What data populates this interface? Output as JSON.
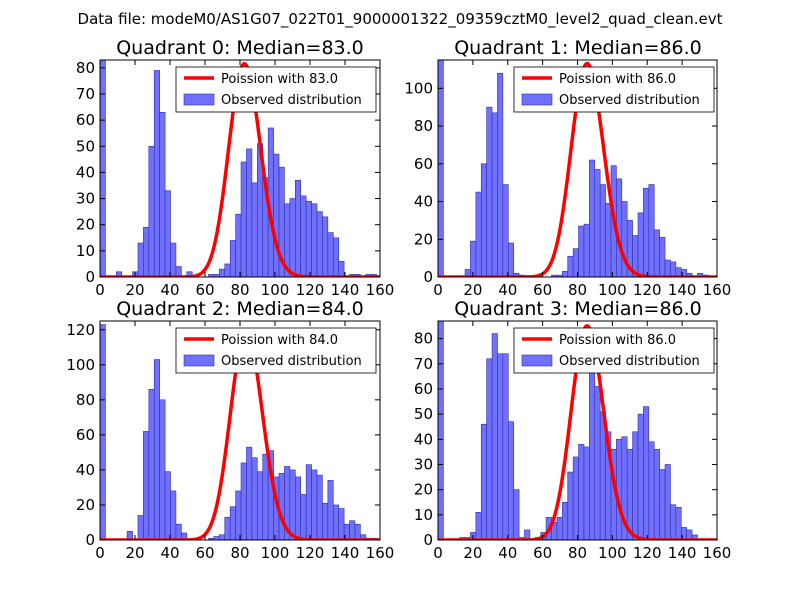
{
  "figure": {
    "suptitle": "Data file: modeM0/AS1G07_022T01_9000001322_09359cztM0_level2_quad_clean.evt",
    "colors": {
      "bars": "#7070ff",
      "bar_edge": "#3030a0",
      "poisson": "#ff0000"
    }
  },
  "chart_data": [
    {
      "type": "bar",
      "title": "Quadrant 0: Median=83.0",
      "xlabel": "",
      "ylabel": "",
      "xlim": [
        0,
        160
      ],
      "ylim": [
        0,
        83
      ],
      "xticks": [
        0,
        20,
        40,
        60,
        80,
        100,
        120,
        140,
        160
      ],
      "yticks": [
        0,
        10,
        20,
        30,
        40,
        50,
        60,
        70,
        80
      ],
      "bin_width": 3.1,
      "bins": [
        [
          0,
          83
        ],
        [
          9.3,
          2
        ],
        [
          18.6,
          2
        ],
        [
          21.7,
          13
        ],
        [
          24.8,
          19
        ],
        [
          27.9,
          50
        ],
        [
          31,
          79
        ],
        [
          34.1,
          63
        ],
        [
          37.2,
          33
        ],
        [
          40.3,
          13
        ],
        [
          43.4,
          4
        ],
        [
          49.6,
          2
        ],
        [
          62,
          1
        ],
        [
          65.1,
          1
        ],
        [
          68.2,
          3
        ],
        [
          71.3,
          5
        ],
        [
          74.4,
          14
        ],
        [
          77.5,
          24
        ],
        [
          80.6,
          44
        ],
        [
          83.7,
          49
        ],
        [
          86.8,
          36
        ],
        [
          89.9,
          51
        ],
        [
          93,
          38
        ],
        [
          96.1,
          57
        ],
        [
          99.2,
          47
        ],
        [
          102.3,
          42
        ],
        [
          105.4,
          28
        ],
        [
          108.5,
          30
        ],
        [
          111.6,
          37
        ],
        [
          114.7,
          31
        ],
        [
          117.8,
          29
        ],
        [
          120.9,
          28
        ],
        [
          124,
          25
        ],
        [
          127.1,
          23
        ],
        [
          130.2,
          17
        ],
        [
          133.3,
          15
        ],
        [
          136.4,
          6
        ],
        [
          142.6,
          1
        ],
        [
          145.7,
          1
        ],
        [
          151.9,
          1
        ],
        [
          155,
          1
        ]
      ],
      "poisson": {
        "mean": 83.0,
        "scale": 81.5,
        "label": "Poission with 83.0"
      },
      "legend": [
        "Poission with 83.0",
        "Observed distribution"
      ],
      "legend_loc": "top-right"
    },
    {
      "type": "bar",
      "title": "Quadrant 1: Median=86.0",
      "xlabel": "",
      "ylabel": "",
      "xlim": [
        0,
        160
      ],
      "ylim": [
        0,
        115
      ],
      "xticks": [
        0,
        20,
        40,
        60,
        80,
        100,
        120,
        140,
        160
      ],
      "yticks": [
        0,
        20,
        40,
        60,
        80,
        100
      ],
      "bin_width": 3.1,
      "bins": [
        [
          0,
          115
        ],
        [
          15.5,
          4
        ],
        [
          18.6,
          19
        ],
        [
          21.7,
          45
        ],
        [
          24.8,
          60
        ],
        [
          27.9,
          90
        ],
        [
          31,
          87
        ],
        [
          34.1,
          108
        ],
        [
          37.2,
          49
        ],
        [
          40.3,
          18
        ],
        [
          43.4,
          2
        ],
        [
          46.5,
          1
        ],
        [
          55.8,
          1
        ],
        [
          65.1,
          1
        ],
        [
          68.2,
          1
        ],
        [
          71.3,
          3
        ],
        [
          74.4,
          11
        ],
        [
          77.5,
          15
        ],
        [
          80.6,
          27
        ],
        [
          83.7,
          28
        ],
        [
          86.8,
          62
        ],
        [
          89.9,
          57
        ],
        [
          93,
          49
        ],
        [
          96.1,
          39
        ],
        [
          99.2,
          59
        ],
        [
          102.3,
          52
        ],
        [
          105.4,
          40
        ],
        [
          108.5,
          30
        ],
        [
          111.6,
          22
        ],
        [
          114.7,
          34
        ],
        [
          117.8,
          47
        ],
        [
          120.9,
          49
        ],
        [
          124,
          25
        ],
        [
          127.1,
          21
        ],
        [
          130.2,
          9
        ],
        [
          133.3,
          8
        ],
        [
          136.4,
          5
        ],
        [
          139.5,
          4
        ],
        [
          142.6,
          2
        ],
        [
          148.8,
          2
        ],
        [
          151.9,
          1
        ]
      ],
      "poisson": {
        "mean": 86.0,
        "scale": 113,
        "label": "Poission with 86.0"
      },
      "legend": [
        "Poission with 86.0",
        "Observed distribution"
      ],
      "legend_loc": "top-right"
    },
    {
      "type": "bar",
      "title": "Quadrant 2: Median=84.0",
      "xlabel": "",
      "ylabel": "",
      "xlim": [
        0,
        160
      ],
      "ylim": [
        0,
        125
      ],
      "xticks": [
        0,
        20,
        40,
        60,
        80,
        100,
        120,
        140,
        160
      ],
      "yticks": [
        0,
        20,
        40,
        60,
        80,
        100,
        120
      ],
      "bin_width": 3.1,
      "bins": [
        [
          0,
          123
        ],
        [
          15.5,
          5
        ],
        [
          21.7,
          14
        ],
        [
          24.8,
          62
        ],
        [
          27.9,
          86
        ],
        [
          31,
          103
        ],
        [
          34.1,
          80
        ],
        [
          37.2,
          39
        ],
        [
          40.3,
          28
        ],
        [
          43.4,
          9
        ],
        [
          46.5,
          4
        ],
        [
          62,
          1
        ],
        [
          65.1,
          2
        ],
        [
          68.2,
          3
        ],
        [
          71.3,
          13
        ],
        [
          74.4,
          19
        ],
        [
          77.5,
          28
        ],
        [
          80.6,
          44
        ],
        [
          83.7,
          53
        ],
        [
          86.8,
          47
        ],
        [
          89.9,
          39
        ],
        [
          93,
          49
        ],
        [
          96.1,
          51
        ],
        [
          99.2,
          36
        ],
        [
          102.3,
          38
        ],
        [
          105.4,
          42
        ],
        [
          108.5,
          40
        ],
        [
          111.6,
          36
        ],
        [
          114.7,
          26
        ],
        [
          117.8,
          43
        ],
        [
          120.9,
          40
        ],
        [
          124,
          37
        ],
        [
          127.1,
          21
        ],
        [
          130.2,
          34
        ],
        [
          133.3,
          20
        ],
        [
          136.4,
          18
        ],
        [
          139.5,
          9
        ],
        [
          142.6,
          11
        ],
        [
          145.7,
          9
        ],
        [
          148.8,
          3
        ],
        [
          151.9,
          1
        ],
        [
          155,
          1
        ]
      ],
      "poisson": {
        "mean": 84.0,
        "scale": 119,
        "label": "Poission with 84.0"
      },
      "legend": [
        "Poission with 84.0",
        "Observed distribution"
      ],
      "legend_loc": "top-right"
    },
    {
      "type": "bar",
      "title": "Quadrant 3: Median=86.0",
      "xlabel": "",
      "ylabel": "",
      "xlim": [
        0,
        160
      ],
      "ylim": [
        0,
        87
      ],
      "xticks": [
        0,
        20,
        40,
        60,
        80,
        100,
        120,
        140,
        160
      ],
      "yticks": [
        0,
        10,
        20,
        30,
        40,
        50,
        60,
        70,
        80
      ],
      "bin_width": 3.1,
      "bins": [
        [
          0,
          87
        ],
        [
          12.4,
          1
        ],
        [
          15.5,
          1
        ],
        [
          18.6,
          3
        ],
        [
          21.7,
          11
        ],
        [
          24.8,
          46
        ],
        [
          27.9,
          72
        ],
        [
          31,
          82
        ],
        [
          34.1,
          74
        ],
        [
          37.2,
          74
        ],
        [
          40.3,
          47
        ],
        [
          43.4,
          20
        ],
        [
          46.5,
          1
        ],
        [
          49.6,
          4
        ],
        [
          55.8,
          1
        ],
        [
          58.9,
          3
        ],
        [
          62,
          9
        ],
        [
          65.1,
          7
        ],
        [
          68.2,
          9
        ],
        [
          71.3,
          15
        ],
        [
          74.4,
          27
        ],
        [
          77.5,
          33
        ],
        [
          80.6,
          38
        ],
        [
          83.7,
          37
        ],
        [
          86.8,
          68
        ],
        [
          89.9,
          61
        ],
        [
          93,
          51
        ],
        [
          96.1,
          43
        ],
        [
          99.2,
          36
        ],
        [
          102.3,
          40
        ],
        [
          105.4,
          41
        ],
        [
          108.5,
          36
        ],
        [
          111.6,
          43
        ],
        [
          114.7,
          50
        ],
        [
          117.8,
          53
        ],
        [
          120.9,
          39
        ],
        [
          124,
          36
        ],
        [
          127.1,
          28
        ],
        [
          130.2,
          30
        ],
        [
          133.3,
          14
        ],
        [
          136.4,
          13
        ],
        [
          139.5,
          5
        ],
        [
          142.6,
          4
        ],
        [
          145.7,
          2
        ]
      ],
      "poisson": {
        "mean": 86.0,
        "scale": 85,
        "label": "Poission with 86.0"
      },
      "legend": [
        "Poission with 86.0",
        "Observed distribution"
      ],
      "legend_loc": "top-right"
    }
  ]
}
